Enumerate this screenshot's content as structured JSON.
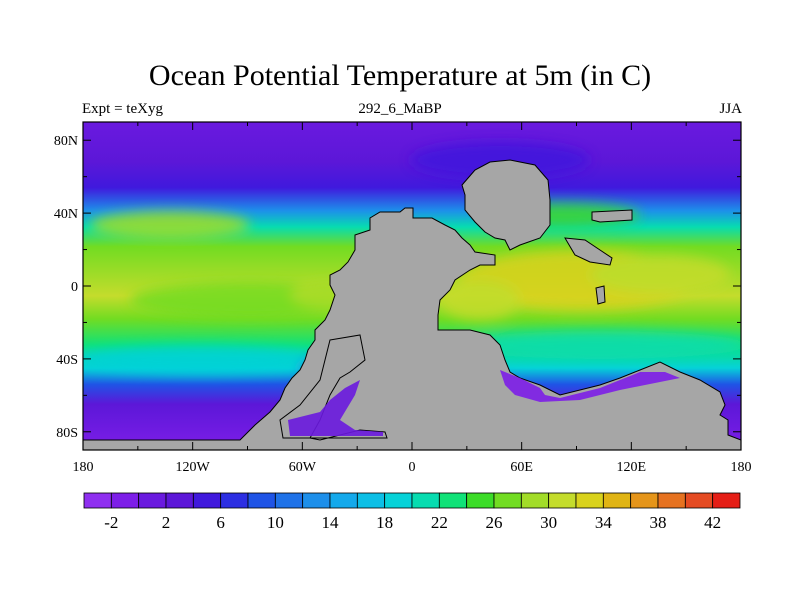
{
  "chart_data": {
    "type": "heatmap",
    "title": "Ocean Potential Temperature at 5m (in C)",
    "left_string": "Expt = teXyg",
    "center_string": "292_6_MaBP",
    "right_string": "JJA",
    "x_ticks": [
      "180",
      "120W",
      "60W",
      "0",
      "60E",
      "120E",
      "180"
    ],
    "x_tick_values": [
      -180,
      -120,
      -60,
      0,
      60,
      120,
      180
    ],
    "y_ticks": [
      "80N",
      "40N",
      "0",
      "40S",
      "80S"
    ],
    "y_tick_values": [
      80,
      40,
      0,
      -40,
      -80
    ],
    "xlim": [
      -180,
      180
    ],
    "ylim": [
      -90,
      90
    ],
    "land_color": "#a6a6a6",
    "colorbar": {
      "labels": [
        "-2",
        "2",
        "6",
        "10",
        "14",
        "18",
        "22",
        "26",
        "30",
        "34",
        "38",
        "42"
      ],
      "levels": [
        -4,
        -2,
        0,
        2,
        4,
        6,
        8,
        10,
        12,
        14,
        16,
        18,
        20,
        22,
        24,
        26,
        28,
        30,
        32,
        34,
        36,
        38,
        40,
        42,
        44
      ],
      "colors": [
        "#8f2ff0",
        "#7d1ee8",
        "#6a1adf",
        "#5c17d8",
        "#4019dd",
        "#2c2ee2",
        "#1f54e6",
        "#1f72e8",
        "#1d8fea",
        "#14a9eb",
        "#0cbfe6",
        "#06d2d8",
        "#07dcb0",
        "#10e278",
        "#3cdc28",
        "#72dc22",
        "#a2dc28",
        "#c4dc2c",
        "#d9d21c",
        "#e0b414",
        "#e5951a",
        "#e67220",
        "#e54b22",
        "#e51e16"
      ]
    }
  }
}
